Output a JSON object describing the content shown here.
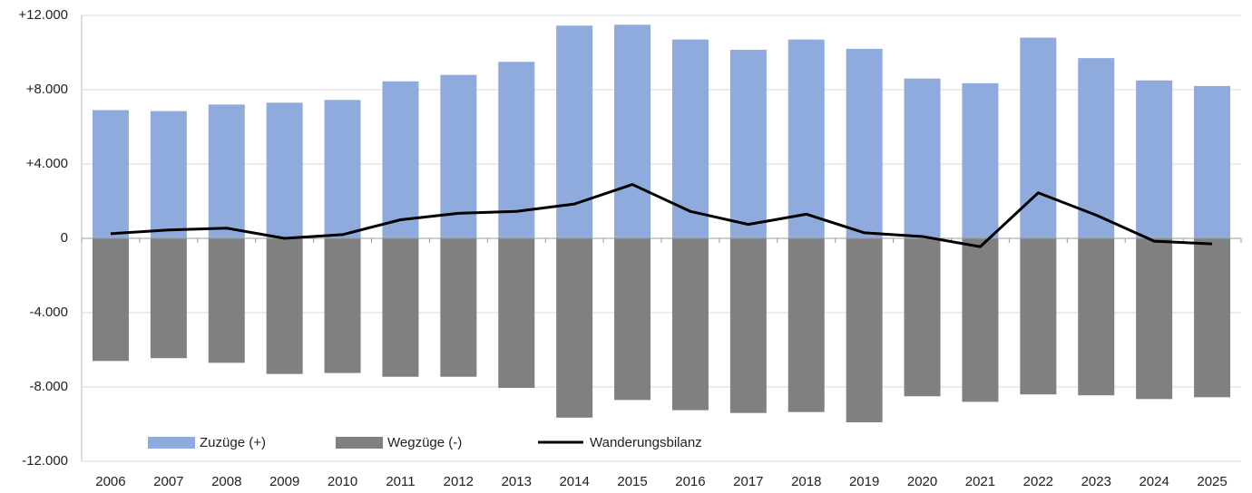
{
  "chart_data": {
    "type": "bar_line",
    "categories": [
      "2006",
      "2007",
      "2008",
      "2009",
      "2010",
      "2011",
      "2012",
      "2013",
      "2014",
      "2015",
      "2016",
      "2017",
      "2018",
      "2019",
      "2020",
      "2021",
      "2022",
      "2023",
      "2024",
      "2025"
    ],
    "series": [
      {
        "name": "Zuzüge (+)",
        "color": "#8faadc",
        "type": "bar",
        "values": [
          6900,
          6850,
          7200,
          7300,
          7450,
          8450,
          8800,
          9500,
          11450,
          11500,
          10700,
          10150,
          10700,
          10200,
          8600,
          8350,
          10800,
          9700,
          8500,
          8200
        ]
      },
      {
        "name": "Wegzüge (-)",
        "color": "#808080",
        "type": "bar",
        "values": [
          -6600,
          -6450,
          -6700,
          -7300,
          -7250,
          -7450,
          -7450,
          -8050,
          -9650,
          -8700,
          -9250,
          -9400,
          -9350,
          -9900,
          -8500,
          -8800,
          -8400,
          -8450,
          -8650,
          -8550
        ]
      },
      {
        "name": "Wanderungsbilanz",
        "color": "#000000",
        "type": "line",
        "values": [
          250,
          450,
          550,
          0,
          200,
          1000,
          1350,
          1450,
          1850,
          2900,
          1450,
          750,
          1300,
          300,
          100,
          -450,
          2450,
          1250,
          -150,
          -300
        ]
      }
    ],
    "ylim": [
      -12000,
      12000
    ],
    "yticks": [
      {
        "value": -12000,
        "label": "-12.000"
      },
      {
        "value": -8000,
        "label": "-8.000"
      },
      {
        "value": -4000,
        "label": "-4.000"
      },
      0,
      {
        "value": 4000,
        "label": "+4.000"
      },
      {
        "value": 8000,
        "label": "+8.000"
      },
      {
        "value": 12000,
        "label": "+12.000"
      }
    ],
    "grid": true,
    "legend": "bottom-left"
  }
}
